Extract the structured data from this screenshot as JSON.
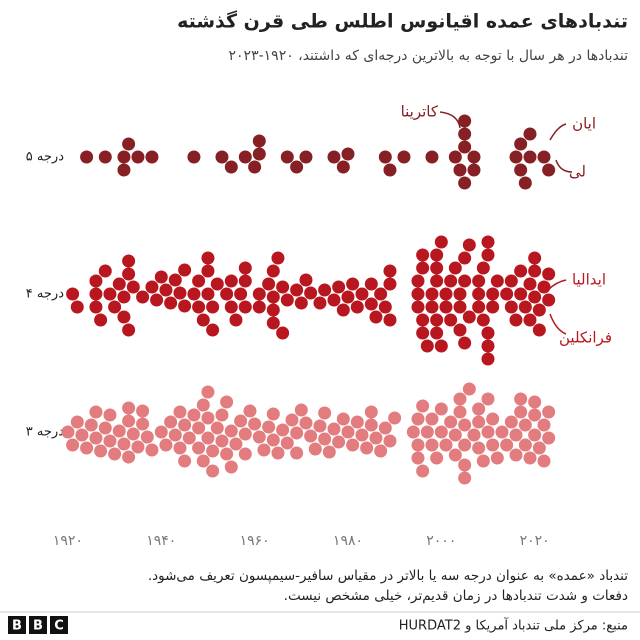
{
  "chart_data": {
    "type": "beeswarm",
    "title": "تندبادهای عمده اقیانوس اطلس طی قرن گذشته",
    "subtitle": "تندبادها در هر سال با توجه به بالاترین درجه‌ای که داشتند، ۱۹۲۰-۲۰۲۳",
    "xlim": [
      1915,
      2025
    ],
    "xticks": [
      {
        "value": 1920,
        "label": "۱۹۲۰"
      },
      {
        "value": 1940,
        "label": "۱۹۴۰"
      },
      {
        "value": 1960,
        "label": "۱۹۶۰"
      },
      {
        "value": 1980,
        "label": "۱۹۸۰"
      },
      {
        "value": 2000,
        "label": "۲۰۰۰"
      },
      {
        "value": 2020,
        "label": "۲۰۲۰"
      }
    ],
    "series": [
      {
        "name": "درجه ۵",
        "color": "#862024",
        "x": [
          1924,
          1928,
          1932,
          1932,
          1933,
          1935,
          1938,
          1947,
          1953,
          1955,
          1958,
          1960,
          1961,
          1961,
          1967,
          1969,
          1971,
          1977,
          1979,
          1980,
          1988,
          1989,
          1992,
          1998,
          2003,
          2004,
          2005,
          2005,
          2005,
          2005,
          2007,
          2007,
          2016,
          2017,
          2017,
          2018,
          2019,
          2019,
          2022,
          2023
        ]
      },
      {
        "name": "درجه ۴",
        "color": "#b9171f",
        "x": [
          1921,
          1922,
          1926,
          1926,
          1926,
          1927,
          1928,
          1929,
          1930,
          1931,
          1932,
          1932,
          1933,
          1933,
          1933,
          1934,
          1936,
          1938,
          1939,
          1940,
          1941,
          1942,
          1943,
          1944,
          1945,
          1945,
          1947,
          1948,
          1948,
          1949,
          1950,
          1950,
          1950,
          1951,
          1951,
          1952,
          1954,
          1955,
          1955,
          1956,
          1957,
          1958,
          1958,
          1958,
          1961,
          1961,
          1963,
          1964,
          1964,
          1964,
          1964,
          1965,
          1966,
          1966,
          1967,
          1969,
          1970,
          1971,
          1972,
          1974,
          1975,
          1977,
          1978,
          1979,
          1980,
          1981,
          1982,
          1983,
          1985,
          1985,
          1986,
          1987,
          1988,
          1989,
          1989,
          1989,
          1995,
          1995,
          1995,
          1996,
          1996,
          1996,
          1996,
          1997,
          1998,
          1998,
          1999,
          1999,
          1999,
          1999,
          1999,
          2000,
          2000,
          2001,
          2001,
          2002,
          2002,
          2003,
          2004,
          2004,
          2004,
          2005,
          2005,
          2005,
          2006,
          2006,
          2008,
          2008,
          2008,
          2009,
          2009,
          2010,
          2010,
          2010,
          2010,
          2010,
          2011,
          2011,
          2012,
          2014,
          2015,
          2015,
          2016,
          2017,
          2017,
          2018,
          2019,
          2019,
          2020,
          2020,
          2020,
          2021,
          2021,
          2022,
          2023,
          2023
        ]
      },
      {
        "name": "درجه ۳",
        "color": "#e27c7e",
        "x": [
          1920,
          1921,
          1922,
          1923,
          1924,
          1925,
          1926,
          1926,
          1927,
          1928,
          1929,
          1929,
          1930,
          1931,
          1932,
          1933,
          1933,
          1933,
          1934,
          1935,
          1936,
          1936,
          1937,
          1938,
          1940,
          1941,
          1942,
          1943,
          1944,
          1944,
          1945,
          1945,
          1946,
          1947,
          1948,
          1948,
          1949,
          1949,
          1950,
          1950,
          1950,
          1951,
          1951,
          1952,
          1953,
          1953,
          1954,
          1954,
          1955,
          1955,
          1956,
          1957,
          1958,
          1958,
          1959,
          1960,
          1961,
          1962,
          1963,
          1964,
          1964,
          1965,
          1966,
          1967,
          1968,
          1969,
          1969,
          1970,
          1971,
          1972,
          1973,
          1974,
          1975,
          1975,
          1976,
          1977,
          1978,
          1979,
          1980,
          1981,
          1982,
          1983,
          1984,
          1985,
          1985,
          1986,
          1987,
          1988,
          1989,
          1990,
          1994,
          1995,
          1995,
          1995,
          1996,
          1996,
          1997,
          1998,
          1998,
          1999,
          2000,
          2000,
          2001,
          2002,
          2003,
          2003,
          2004,
          2004,
          2005,
          2005,
          2005,
          2005,
          2006,
          2007,
          2008,
          2008,
          2008,
          2009,
          2010,
          2010,
          2011,
          2011,
          2012,
          2013,
          2014,
          2015,
          2016,
          2016,
          2017,
          2017,
          2018,
          2018,
          2019,
          2020,
          2020,
          2020,
          2021,
          2022,
          2022,
          2023,
          2023
        ]
      }
    ],
    "annotations": [
      "کاترینا",
      "ایان",
      "لی",
      "ایدالیا",
      "فرانکلین"
    ],
    "notes": [
      "تندباد «عمده» به عنوان درجه سه یا بالاتر در مقیاس سافیر-سیمپسون تعریف می‌شود.",
      "دفعات و شدت تندبادها در زمان قدیم‌تر، خیلی مشخص نیست."
    ],
    "source": "منبع: مرکز ملی تندباد آمریکا و HURDAT2",
    "logo": "BBC"
  }
}
